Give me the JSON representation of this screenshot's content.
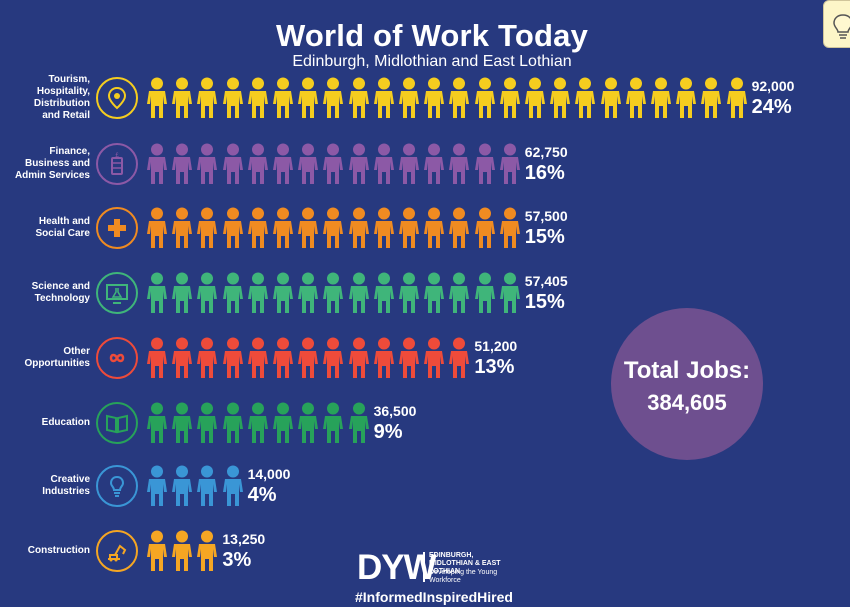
{
  "title": "World of Work Today",
  "subtitle": "Edinburgh, Midlothian and East Lothian",
  "chart_data": {
    "type": "pictogram",
    "title": "World of Work Today",
    "subtitle": "Edinburgh, Midlothian and East Lothian",
    "categories": [
      "Tourism, Hospitality, Distribution and Retail",
      "Finance, Business and Admin Services",
      "Health and Social Care",
      "Science and Technology",
      "Other Opportunities",
      "Education",
      "Creative Industries",
      "Construction"
    ],
    "series": [
      {
        "values": [
          92000,
          62750,
          57500,
          57405,
          51200,
          36500,
          14000,
          13250
        ],
        "value_labels": [
          "92,000",
          "62,750",
          "57,500",
          "57,405",
          "51,200",
          "36,500",
          "14,000",
          "13,250"
        ],
        "percent_labels": [
          "24%",
          "16%",
          "15%",
          "15%",
          "13%",
          "9%",
          "4%",
          "3%"
        ],
        "icon_counts": [
          24,
          15,
          15,
          15,
          13,
          9,
          4,
          3
        ]
      }
    ],
    "total": {
      "label": "Total Jobs:",
      "value": "384,605"
    }
  },
  "rows": [
    {
      "label": "Tourism,\nHospitality,\nDistribution\nand Retail",
      "icon": "location-pin-icon",
      "color": "#f5cd1f"
    },
    {
      "label": "Finance,\nBusiness and\nAdmin Services",
      "icon": "coin-stack-icon",
      "color": "#8c59a6"
    },
    {
      "label": "Health and\nSocial Care",
      "icon": "medical-cross-icon",
      "color": "#f08b21"
    },
    {
      "label": "Science and\nTechnology",
      "icon": "monitor-flask-icon",
      "color": "#3fb57a"
    },
    {
      "label": "Other\nOpportunities",
      "icon": "infinity-icon",
      "color": "#ee4b3a"
    },
    {
      "label": "Education",
      "icon": "open-book-icon",
      "color": "#27a25a"
    },
    {
      "label": "Creative\nIndustries",
      "icon": "lightbulb-icon",
      "color": "#3a96d6"
    },
    {
      "label": "Construction",
      "icon": "excavator-icon",
      "color": "#f5a623"
    }
  ],
  "logo": {
    "brand": "DYW",
    "region": "EDINBURGH, MIDLOTHIAN & EAST LOTHIAN",
    "tagline": "Developing the Young Workforce"
  },
  "hashtag": "#InformedInspiredHired",
  "helper_tab": {
    "icon": "lightbulb-icon",
    "color": "#fdf6c8"
  }
}
